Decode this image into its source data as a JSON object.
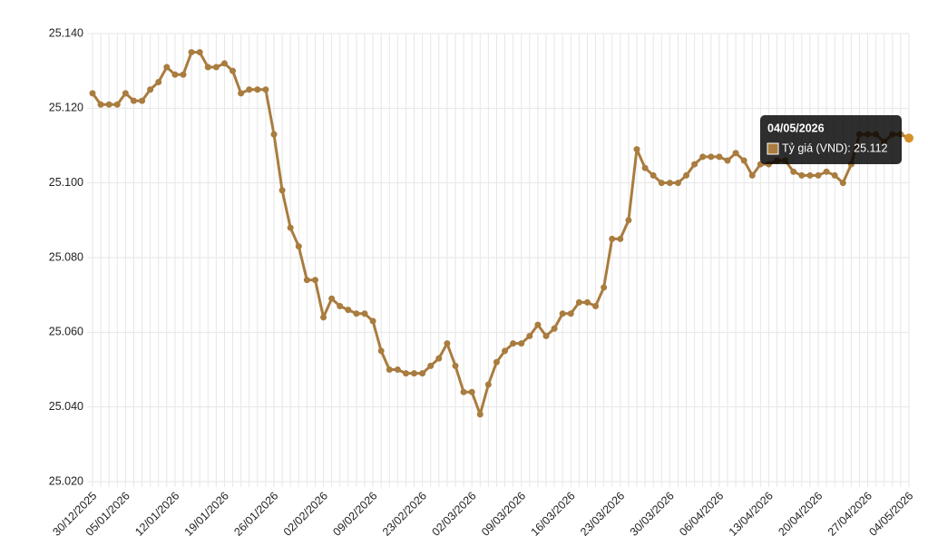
{
  "chart_data": {
    "type": "line",
    "categories": [
      "30/12/2025",
      null,
      null,
      null,
      "05/01/2026",
      null,
      null,
      null,
      null,
      null,
      "12/01/2026",
      null,
      null,
      null,
      null,
      null,
      "19/01/2026",
      null,
      null,
      null,
      null,
      null,
      "26/01/2026",
      null,
      null,
      null,
      null,
      null,
      "02/02/2026",
      null,
      null,
      null,
      null,
      null,
      "09/02/2026",
      null,
      null,
      null,
      null,
      null,
      "23/02/2026",
      null,
      null,
      null,
      null,
      null,
      "02/03/2026",
      null,
      null,
      null,
      null,
      null,
      "09/03/2026",
      null,
      null,
      null,
      null,
      null,
      "16/03/2026",
      null,
      null,
      null,
      null,
      null,
      "23/03/2026",
      null,
      null,
      null,
      null,
      null,
      "30/03/2026",
      null,
      null,
      null,
      null,
      null,
      "06/04/2026",
      null,
      null,
      null,
      null,
      null,
      "13/04/2026",
      null,
      null,
      null,
      null,
      null,
      "20/04/2026",
      null,
      null,
      null,
      null,
      null,
      "27/04/2026",
      null,
      null,
      null,
      null,
      "04/05/2026"
    ],
    "series": [
      {
        "name": "Tỷ giá (VND)",
        "color": "#a97c3f",
        "values": [
          25124,
          25121,
          25121,
          25121,
          25124,
          25122,
          25122,
          25125,
          25127,
          25131,
          25129,
          25129,
          25135,
          25135,
          25131,
          25131,
          25132,
          25130,
          25124,
          25125,
          25125,
          25125,
          25113,
          25098,
          25088,
          25083,
          25074,
          25074,
          25064,
          25069,
          25067,
          25066,
          25065,
          25065,
          25063,
          25055,
          25050,
          25050,
          25049,
          25049,
          25049,
          25051,
          25053,
          25057,
          25051,
          25044,
          25044,
          25038,
          25046,
          25052,
          25055,
          25057,
          25057,
          25059,
          25062,
          25059,
          25061,
          25065,
          25065,
          25068,
          25068,
          25067,
          25072,
          25085,
          25085,
          25090,
          25109,
          25104,
          25102,
          25100,
          25100,
          25100,
          25102,
          25105,
          25107,
          25107,
          25107,
          25106,
          25108,
          25106,
          25102,
          25105,
          25105,
          25106,
          25106,
          25103,
          25102,
          25102,
          25102,
          25103,
          25102,
          25100,
          25105,
          25113,
          25113,
          25113,
          25111,
          25113,
          25113,
          25112
        ]
      }
    ],
    "ylim": [
      25020,
      25140
    ],
    "yticks": [
      {
        "value": 25020,
        "label": "25.020"
      },
      {
        "value": 25040,
        "label": "25.040"
      },
      {
        "value": 25060,
        "label": "25.060"
      },
      {
        "value": 25080,
        "label": "25.080"
      },
      {
        "value": 25100,
        "label": "25.100"
      },
      {
        "value": 25120,
        "label": "25.120"
      },
      {
        "value": 25140,
        "label": "25.140"
      }
    ],
    "grid": true,
    "highlight_color": "#d4912a",
    "tooltip": {
      "text": "Tỷ giá (VND): 25.112"
    }
  }
}
